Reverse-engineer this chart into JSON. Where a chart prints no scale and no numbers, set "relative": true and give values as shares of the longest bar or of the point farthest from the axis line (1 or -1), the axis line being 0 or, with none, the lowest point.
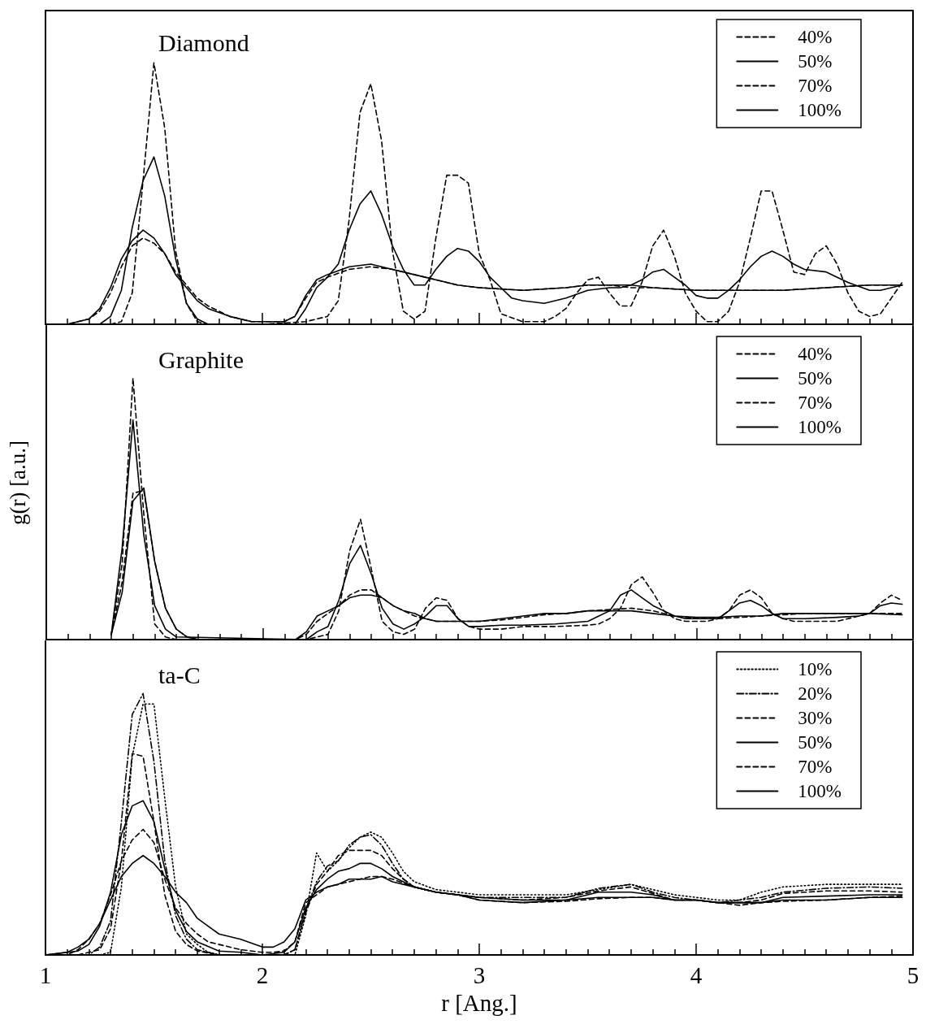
{
  "chart_data": [
    {
      "type": "line",
      "title": "Diamond",
      "relative": true,
      "xlim": [
        1,
        5
      ],
      "xticks": [
        1,
        {
          "value": 1.1,
          "label": null
        },
        {
          "value": 1.2,
          "label": null
        },
        {
          "value": 1.3,
          "label": null
        },
        {
          "value": 1.4,
          "label": null
        },
        {
          "value": 1.5,
          "label": null
        },
        {
          "value": 1.6,
          "label": null
        },
        {
          "value": 1.7,
          "label": null
        },
        {
          "value": 1.8,
          "label": null
        },
        {
          "value": 1.9,
          "label": null
        },
        2,
        {
          "value": 2.1,
          "label": null
        },
        {
          "value": 2.2,
          "label": null
        },
        {
          "value": 2.3,
          "label": null
        },
        {
          "value": 2.4,
          "label": null
        },
        {
          "value": 2.5,
          "label": null
        },
        {
          "value": 2.6,
          "label": null
        },
        {
          "value": 2.7,
          "label": null
        },
        {
          "value": 2.8,
          "label": null
        },
        {
          "value": 2.9,
          "label": null
        },
        3,
        {
          "value": 3.1,
          "label": null
        },
        {
          "value": 3.2,
          "label": null
        },
        {
          "value": 3.3,
          "label": null
        },
        {
          "value": 3.4,
          "label": null
        },
        {
          "value": 3.5,
          "label": null
        },
        {
          "value": 3.6,
          "label": null
        },
        {
          "value": 3.7,
          "label": null
        },
        {
          "value": 3.8,
          "label": null
        },
        {
          "value": 3.9,
          "label": null
        },
        4,
        {
          "value": 4.1,
          "label": null
        },
        {
          "value": 4.2,
          "label": null
        },
        {
          "value": 4.3,
          "label": null
        },
        {
          "value": 4.4,
          "label": null
        },
        {
          "value": 4.5,
          "label": null
        },
        {
          "value": 4.6,
          "label": null
        },
        {
          "value": 4.7,
          "label": null
        },
        {
          "value": 4.8,
          "label": null
        },
        {
          "value": 4.9,
          "label": null
        },
        5
      ],
      "tick_labels": false,
      "grid": false,
      "legend": "top right",
      "marker": "none",
      "series": [
        {
          "name": "40%",
          "color": "#000000",
          "line_style": "dashed",
          "x": [
            1.0,
            1.25,
            1.3,
            1.35,
            1.4,
            1.45,
            1.5,
            1.55,
            1.6,
            1.65,
            1.7,
            1.75,
            2.0,
            2.2,
            2.3,
            2.35,
            2.4,
            2.45,
            2.5,
            2.55,
            2.6,
            2.65,
            2.7,
            2.75,
            2.8,
            2.85,
            2.9,
            2.95,
            3.0,
            3.05,
            3.1,
            3.2,
            3.3,
            3.35,
            3.4,
            3.45,
            3.5,
            3.55,
            3.6,
            3.65,
            3.7,
            3.75,
            3.8,
            3.85,
            3.9,
            3.95,
            4.0,
            4.05,
            4.1,
            4.15,
            4.2,
            4.25,
            4.3,
            4.35,
            4.4,
            4.45,
            4.5,
            4.55,
            4.6,
            4.65,
            4.7,
            4.75,
            4.8,
            4.85,
            4.9,
            4.95
          ],
          "values": [
            0,
            0,
            0,
            0.01,
            0.12,
            0.55,
            1.0,
            0.75,
            0.28,
            0.08,
            0.01,
            0,
            0,
            0.01,
            0.03,
            0.09,
            0.4,
            0.81,
            0.92,
            0.7,
            0.28,
            0.05,
            0.02,
            0.05,
            0.33,
            0.57,
            0.57,
            0.54,
            0.27,
            0.17,
            0.04,
            0.01,
            0.01,
            0.03,
            0.06,
            0.12,
            0.17,
            0.18,
            0.12,
            0.07,
            0.07,
            0.16,
            0.3,
            0.36,
            0.26,
            0.12,
            0.05,
            0.01,
            0.01,
            0.05,
            0.16,
            0.33,
            0.51,
            0.51,
            0.36,
            0.2,
            0.19,
            0.27,
            0.3,
            0.23,
            0.12,
            0.05,
            0.03,
            0.04,
            0.1,
            0.16
          ]
        },
        {
          "name": "50%",
          "color": "#000000",
          "line_style": "solid",
          "x": [
            1.0,
            1.25,
            1.3,
            1.35,
            1.4,
            1.45,
            1.5,
            1.55,
            1.6,
            1.65,
            1.7,
            1.75,
            2.0,
            2.15,
            2.2,
            2.25,
            2.3,
            2.35,
            2.4,
            2.45,
            2.5,
            2.55,
            2.6,
            2.65,
            2.7,
            2.75,
            2.8,
            2.85,
            2.9,
            2.95,
            3.0,
            3.05,
            3.1,
            3.15,
            3.2,
            3.3,
            3.4,
            3.5,
            3.6,
            3.65,
            3.7,
            3.75,
            3.8,
            3.85,
            3.9,
            3.95,
            4.0,
            4.05,
            4.1,
            4.15,
            4.2,
            4.25,
            4.3,
            4.35,
            4.4,
            4.45,
            4.5,
            4.6,
            4.7,
            4.8,
            4.85,
            4.9,
            4.95
          ],
          "values": [
            0,
            0,
            0.03,
            0.13,
            0.37,
            0.55,
            0.64,
            0.49,
            0.25,
            0.08,
            0.02,
            0,
            0,
            0,
            0.06,
            0.14,
            0.18,
            0.23,
            0.36,
            0.46,
            0.51,
            0.42,
            0.3,
            0.21,
            0.15,
            0.15,
            0.21,
            0.26,
            0.29,
            0.28,
            0.24,
            0.18,
            0.14,
            0.1,
            0.09,
            0.08,
            0.1,
            0.13,
            0.14,
            0.14,
            0.15,
            0.17,
            0.2,
            0.21,
            0.18,
            0.15,
            0.11,
            0.1,
            0.1,
            0.13,
            0.17,
            0.22,
            0.26,
            0.28,
            0.26,
            0.23,
            0.21,
            0.2,
            0.16,
            0.13,
            0.13,
            0.14,
            0.15
          ]
        },
        {
          "name": "70%",
          "color": "#000000",
          "line_style": "dashed",
          "x": [
            1.0,
            1.1,
            1.15,
            1.2,
            1.25,
            1.3,
            1.35,
            1.4,
            1.45,
            1.5,
            1.55,
            1.6,
            1.65,
            1.7,
            1.75,
            1.85,
            1.95,
            2.0,
            2.1,
            2.15,
            2.2,
            2.25,
            2.3,
            2.4,
            2.5,
            2.6,
            2.7,
            2.8,
            2.9,
            3.0,
            3.2,
            3.4,
            3.5,
            3.6,
            3.7,
            3.8,
            4.0,
            4.2,
            4.4,
            4.6,
            4.8,
            4.95
          ],
          "values": [
            0,
            0,
            0.01,
            0.02,
            0.05,
            0.12,
            0.22,
            0.3,
            0.33,
            0.31,
            0.27,
            0.2,
            0.15,
            0.1,
            0.07,
            0.03,
            0.01,
            0.01,
            0.01,
            0.03,
            0.1,
            0.16,
            0.18,
            0.21,
            0.22,
            0.21,
            0.19,
            0.17,
            0.15,
            0.14,
            0.13,
            0.14,
            0.15,
            0.15,
            0.14,
            0.14,
            0.13,
            0.13,
            0.13,
            0.14,
            0.15,
            0.15
          ]
        },
        {
          "name": "100%",
          "color": "#000000",
          "line_style": "solid",
          "x": [
            1.0,
            1.1,
            1.15,
            1.2,
            1.25,
            1.3,
            1.35,
            1.4,
            1.45,
            1.5,
            1.55,
            1.6,
            1.65,
            1.7,
            1.75,
            1.85,
            1.95,
            2.0,
            2.1,
            2.15,
            2.2,
            2.25,
            2.3,
            2.4,
            2.5,
            2.6,
            2.7,
            2.8,
            2.9,
            3.0,
            3.2,
            3.4,
            3.5,
            3.6,
            3.7,
            3.8,
            4.0,
            4.2,
            4.4,
            4.6,
            4.8,
            4.95
          ],
          "values": [
            0,
            0,
            0.01,
            0.02,
            0.06,
            0.14,
            0.25,
            0.32,
            0.36,
            0.33,
            0.27,
            0.19,
            0.14,
            0.09,
            0.06,
            0.03,
            0.01,
            0.01,
            0.01,
            0.03,
            0.11,
            0.17,
            0.19,
            0.22,
            0.23,
            0.21,
            0.19,
            0.17,
            0.15,
            0.14,
            0.13,
            0.14,
            0.15,
            0.15,
            0.15,
            0.14,
            0.13,
            0.13,
            0.13,
            0.14,
            0.15,
            0.15
          ]
        }
      ]
    },
    {
      "type": "line",
      "title": "Graphite",
      "ylabel": "g(r) [a.u.]",
      "relative": true,
      "xlim": [
        1,
        5
      ],
      "xticks": [
        1,
        {
          "value": 1.1,
          "label": null
        },
        {
          "value": 1.2,
          "label": null
        },
        {
          "value": 1.3,
          "label": null
        },
        {
          "value": 1.4,
          "label": null
        },
        {
          "value": 1.5,
          "label": null
        },
        {
          "value": 1.6,
          "label": null
        },
        {
          "value": 1.7,
          "label": null
        },
        {
          "value": 1.8,
          "label": null
        },
        {
          "value": 1.9,
          "label": null
        },
        2,
        {
          "value": 2.1,
          "label": null
        },
        {
          "value": 2.2,
          "label": null
        },
        {
          "value": 2.3,
          "label": null
        },
        {
          "value": 2.4,
          "label": null
        },
        {
          "value": 2.5,
          "label": null
        },
        {
          "value": 2.6,
          "label": null
        },
        {
          "value": 2.7,
          "label": null
        },
        {
          "value": 2.8,
          "label": null
        },
        {
          "value": 2.9,
          "label": null
        },
        3,
        {
          "value": 3.1,
          "label": null
        },
        {
          "value": 3.2,
          "label": null
        },
        {
          "value": 3.3,
          "label": null
        },
        {
          "value": 3.4,
          "label": null
        },
        {
          "value": 3.5,
          "label": null
        },
        {
          "value": 3.6,
          "label": null
        },
        {
          "value": 3.7,
          "label": null
        },
        {
          "value": 3.8,
          "label": null
        },
        {
          "value": 3.9,
          "label": null
        },
        4,
        {
          "value": 4.1,
          "label": null
        },
        {
          "value": 4.2,
          "label": null
        },
        {
          "value": 4.3,
          "label": null
        },
        {
          "value": 4.4,
          "label": null
        },
        {
          "value": 4.5,
          "label": null
        },
        {
          "value": 4.6,
          "label": null
        },
        {
          "value": 4.7,
          "label": null
        },
        {
          "value": 4.8,
          "label": null
        },
        {
          "value": 4.9,
          "label": null
        },
        5
      ],
      "tick_labels": false,
      "grid": false,
      "legend": "top right",
      "marker": "none",
      "series": [
        {
          "name": "40%",
          "color": "#000000",
          "line_style": "dashed",
          "x": [
            1.3,
            1.35,
            1.4,
            1.45,
            1.5,
            1.55,
            1.6,
            2.2,
            2.25,
            2.3,
            2.35,
            2.4,
            2.45,
            2.5,
            2.55,
            2.6,
            2.65,
            2.7,
            2.75,
            2.8,
            2.85,
            2.9,
            2.95,
            3.0,
            3.1,
            3.2,
            3.35,
            3.5,
            3.55,
            3.6,
            3.65,
            3.7,
            3.75,
            3.8,
            3.85,
            3.9,
            3.95,
            4.0,
            4.05,
            4.1,
            4.15,
            4.2,
            4.25,
            4.3,
            4.35,
            4.4,
            4.45,
            4.5,
            4.65,
            4.75,
            4.8,
            4.85,
            4.9,
            4.95
          ],
          "values": [
            0.02,
            0.29,
            1.0,
            0.48,
            0.06,
            0.01,
            0,
            0,
            0.01,
            0.02,
            0.11,
            0.34,
            0.46,
            0.27,
            0.07,
            0.03,
            0.02,
            0.04,
            0.12,
            0.16,
            0.15,
            0.08,
            0.05,
            0.04,
            0.04,
            0.05,
            0.05,
            0.055,
            0.06,
            0.08,
            0.12,
            0.21,
            0.24,
            0.18,
            0.11,
            0.08,
            0.07,
            0.07,
            0.07,
            0.08,
            0.11,
            0.17,
            0.19,
            0.16,
            0.1,
            0.08,
            0.07,
            0.07,
            0.07,
            0.09,
            0.1,
            0.14,
            0.17,
            0.15
          ]
        },
        {
          "name": "50%",
          "color": "#000000",
          "line_style": "solid",
          "x": [
            1.3,
            1.35,
            1.4,
            1.45,
            1.5,
            1.55,
            1.6,
            2.2,
            2.25,
            2.3,
            2.35,
            2.4,
            2.45,
            2.5,
            2.55,
            2.6,
            2.65,
            2.7,
            2.75,
            2.8,
            2.85,
            2.9,
            2.95,
            3.0,
            3.1,
            3.2,
            3.35,
            3.5,
            3.55,
            3.6,
            3.65,
            3.7,
            3.75,
            3.8,
            3.85,
            3.9,
            3.95,
            4.0,
            4.05,
            4.1,
            4.15,
            4.2,
            4.25,
            4.3,
            4.35,
            4.4,
            4.45,
            4.5,
            4.65,
            4.75,
            4.8,
            4.85,
            4.9,
            4.95
          ],
          "values": [
            0.02,
            0.35,
            0.84,
            0.4,
            0.13,
            0.04,
            0.01,
            0,
            0.03,
            0.05,
            0.15,
            0.29,
            0.36,
            0.25,
            0.12,
            0.06,
            0.04,
            0.06,
            0.09,
            0.13,
            0.13,
            0.08,
            0.05,
            0.05,
            0.055,
            0.055,
            0.06,
            0.07,
            0.09,
            0.11,
            0.17,
            0.19,
            0.16,
            0.13,
            0.11,
            0.09,
            0.08,
            0.08,
            0.08,
            0.08,
            0.11,
            0.14,
            0.15,
            0.13,
            0.1,
            0.08,
            0.08,
            0.08,
            0.085,
            0.09,
            0.1,
            0.13,
            0.14,
            0.135
          ]
        },
        {
          "name": "70%",
          "color": "#000000",
          "line_style": "dashed",
          "x": [
            1.3,
            1.35,
            1.4,
            1.45,
            1.5,
            1.55,
            1.6,
            1.65,
            1.7,
            2.15,
            2.2,
            2.25,
            2.3,
            2.35,
            2.4,
            2.45,
            2.5,
            2.55,
            2.6,
            2.65,
            2.7,
            2.75,
            2.8,
            2.9,
            3.0,
            3.1,
            3.2,
            3.3,
            3.4,
            3.5,
            3.6,
            3.7,
            3.8,
            3.9,
            4.0,
            4.1,
            4.2,
            4.3,
            4.4,
            4.5,
            4.6,
            4.7,
            4.8,
            4.95
          ],
          "values": [
            0.02,
            0.22,
            0.56,
            0.57,
            0.3,
            0.12,
            0.04,
            0.01,
            0,
            0,
            0.02,
            0.07,
            0.1,
            0.13,
            0.17,
            0.19,
            0.19,
            0.16,
            0.13,
            0.11,
            0.09,
            0.08,
            0.07,
            0.07,
            0.07,
            0.075,
            0.085,
            0.095,
            0.1,
            0.11,
            0.115,
            0.12,
            0.11,
            0.09,
            0.08,
            0.08,
            0.085,
            0.09,
            0.095,
            0.1,
            0.1,
            0.1,
            0.1,
            0.1
          ]
        },
        {
          "name": "100%",
          "color": "#000000",
          "line_style": "solid",
          "x": [
            1.3,
            1.35,
            1.4,
            1.45,
            1.5,
            1.55,
            1.6,
            1.65,
            1.7,
            2.15,
            2.2,
            2.25,
            2.3,
            2.35,
            2.4,
            2.45,
            2.5,
            2.55,
            2.6,
            2.65,
            2.7,
            2.75,
            2.8,
            2.9,
            3.0,
            3.1,
            3.2,
            3.3,
            3.4,
            3.5,
            3.6,
            3.7,
            3.8,
            3.9,
            4.0,
            4.1,
            4.2,
            4.3,
            4.4,
            4.5,
            4.6,
            4.7,
            4.8,
            4.95
          ],
          "values": [
            0.02,
            0.18,
            0.53,
            0.58,
            0.3,
            0.12,
            0.04,
            0.01,
            0,
            0,
            0.03,
            0.09,
            0.11,
            0.13,
            0.16,
            0.17,
            0.17,
            0.16,
            0.13,
            0.11,
            0.1,
            0.08,
            0.07,
            0.07,
            0.07,
            0.08,
            0.09,
            0.1,
            0.1,
            0.11,
            0.11,
            0.11,
            0.1,
            0.09,
            0.085,
            0.085,
            0.09,
            0.09,
            0.1,
            0.1,
            0.1,
            0.1,
            0.1,
            0.095
          ]
        }
      ]
    },
    {
      "type": "line",
      "title": "ta-C",
      "xlabel": "r [Ang.]",
      "relative": true,
      "xlim": [
        1,
        5
      ],
      "xticks": [
        1,
        {
          "value": 1.1,
          "label": null
        },
        {
          "value": 1.2,
          "label": null
        },
        {
          "value": 1.3,
          "label": null
        },
        {
          "value": 1.4,
          "label": null
        },
        {
          "value": 1.5,
          "label": null
        },
        {
          "value": 1.6,
          "label": null
        },
        {
          "value": 1.7,
          "label": null
        },
        {
          "value": 1.8,
          "label": null
        },
        {
          "value": 1.9,
          "label": null
        },
        2,
        {
          "value": 2.1,
          "label": null
        },
        {
          "value": 2.2,
          "label": null
        },
        {
          "value": 2.3,
          "label": null
        },
        {
          "value": 2.4,
          "label": null
        },
        {
          "value": 2.5,
          "label": null
        },
        {
          "value": 2.6,
          "label": null
        },
        {
          "value": 2.7,
          "label": null
        },
        {
          "value": 2.8,
          "label": null
        },
        {
          "value": 2.9,
          "label": null
        },
        3,
        {
          "value": 3.1,
          "label": null
        },
        {
          "value": 3.2,
          "label": null
        },
        {
          "value": 3.3,
          "label": null
        },
        {
          "value": 3.4,
          "label": null
        },
        {
          "value": 3.5,
          "label": null
        },
        {
          "value": 3.6,
          "label": null
        },
        {
          "value": 3.7,
          "label": null
        },
        {
          "value": 3.8,
          "label": null
        },
        {
          "value": 3.9,
          "label": null
        },
        4,
        {
          "value": 4.1,
          "label": null
        },
        {
          "value": 4.2,
          "label": null
        },
        {
          "value": 4.3,
          "label": null
        },
        {
          "value": 4.4,
          "label": null
        },
        {
          "value": 4.5,
          "label": null
        },
        {
          "value": 4.6,
          "label": null
        },
        {
          "value": 4.7,
          "label": null
        },
        {
          "value": 4.8,
          "label": null
        },
        {
          "value": 4.9,
          "label": null
        },
        5
      ],
      "tick_labels": "x",
      "grid": false,
      "legend": "top right",
      "marker": "none",
      "series": [
        {
          "name": "10%",
          "color": "#000000",
          "line_style": "dotted",
          "x": [
            1.0,
            1.25,
            1.3,
            1.35,
            1.4,
            1.45,
            1.5,
            1.55,
            1.6,
            1.65,
            1.7,
            1.75,
            1.8,
            2.15,
            2.2,
            2.25,
            2.3,
            2.35,
            2.4,
            2.45,
            2.5,
            2.55,
            2.6,
            2.65,
            2.7,
            2.8,
            2.9,
            3.0,
            3.2,
            3.4,
            3.55,
            3.7,
            3.8,
            3.9,
            4.0,
            4.1,
            4.2,
            4.3,
            4.4,
            4.6,
            4.8,
            4.95
          ],
          "values": [
            0,
            0,
            0.01,
            0.26,
            0.76,
            0.96,
            0.96,
            0.6,
            0.26,
            0.08,
            0.04,
            0.01,
            0,
            0,
            0.15,
            0.39,
            0.32,
            0.36,
            0.41,
            0.45,
            0.47,
            0.45,
            0.39,
            0.32,
            0.28,
            0.25,
            0.24,
            0.23,
            0.23,
            0.23,
            0.25,
            0.27,
            0.25,
            0.23,
            0.22,
            0.21,
            0.21,
            0.24,
            0.26,
            0.27,
            0.27,
            0.27
          ]
        },
        {
          "name": "20%",
          "color": "#000000",
          "line_style": "dashdot",
          "x": [
            1.0,
            1.15,
            1.2,
            1.25,
            1.3,
            1.35,
            1.4,
            1.45,
            1.5,
            1.55,
            1.6,
            1.65,
            1.7,
            1.8,
            1.9,
            2.0,
            2.1,
            2.15,
            2.2,
            2.25,
            2.3,
            2.35,
            2.4,
            2.45,
            2.5,
            2.55,
            2.6,
            2.65,
            2.7,
            2.8,
            2.9,
            3.0,
            3.2,
            3.4,
            3.55,
            3.7,
            3.8,
            3.9,
            4.0,
            4.1,
            4.2,
            4.3,
            4.4,
            4.6,
            4.8,
            4.95
          ],
          "values": [
            0,
            0,
            0,
            0.03,
            0.13,
            0.51,
            0.92,
            1.0,
            0.74,
            0.36,
            0.15,
            0.06,
            0.02,
            0,
            0,
            0,
            0,
            0.02,
            0.17,
            0.28,
            0.34,
            0.36,
            0.42,
            0.45,
            0.46,
            0.42,
            0.35,
            0.29,
            0.26,
            0.24,
            0.23,
            0.22,
            0.22,
            0.22,
            0.255,
            0.27,
            0.24,
            0.22,
            0.21,
            0.2,
            0.21,
            0.22,
            0.24,
            0.255,
            0.26,
            0.255
          ]
        },
        {
          "name": "30%",
          "color": "#000000",
          "line_style": "dashed",
          "x": [
            1.0,
            1.15,
            1.2,
            1.25,
            1.3,
            1.35,
            1.4,
            1.45,
            1.5,
            1.55,
            1.6,
            1.65,
            1.7,
            1.8,
            1.9,
            2.0,
            2.1,
            2.15,
            2.2,
            2.25,
            2.3,
            2.35,
            2.4,
            2.45,
            2.5,
            2.55,
            2.6,
            2.65,
            2.7,
            2.8,
            2.9,
            3.0,
            3.2,
            3.4,
            3.55,
            3.7,
            3.8,
            3.9,
            4.0,
            4.1,
            4.2,
            4.3,
            4.4,
            4.6,
            4.8,
            4.95
          ],
          "values": [
            0,
            0,
            0.01,
            0.02,
            0.1,
            0.36,
            0.77,
            0.76,
            0.51,
            0.23,
            0.09,
            0.04,
            0.015,
            0,
            0,
            0,
            0,
            0.02,
            0.16,
            0.27,
            0.32,
            0.38,
            0.4,
            0.4,
            0.4,
            0.38,
            0.33,
            0.29,
            0.26,
            0.24,
            0.23,
            0.22,
            0.21,
            0.22,
            0.245,
            0.26,
            0.235,
            0.21,
            0.21,
            0.2,
            0.2,
            0.21,
            0.235,
            0.245,
            0.245,
            0.24
          ]
        },
        {
          "name": "50%",
          "color": "#000000",
          "line_style": "solid",
          "x": [
            1.0,
            1.15,
            1.2,
            1.25,
            1.3,
            1.35,
            1.4,
            1.45,
            1.5,
            1.55,
            1.6,
            1.65,
            1.7,
            1.8,
            1.9,
            2.0,
            2.1,
            2.15,
            2.2,
            2.25,
            2.3,
            2.35,
            2.4,
            2.45,
            2.5,
            2.55,
            2.6,
            2.65,
            2.7,
            2.8,
            2.9,
            3.0,
            3.2,
            3.4,
            3.55,
            3.7,
            3.8,
            3.9,
            4.0,
            4.1,
            4.2,
            4.3,
            4.4,
            4.6,
            4.8,
            4.95
          ],
          "values": [
            0,
            0.015,
            0.04,
            0.11,
            0.24,
            0.46,
            0.57,
            0.59,
            0.51,
            0.33,
            0.17,
            0.09,
            0.05,
            0.015,
            0.01,
            0,
            0.01,
            0.05,
            0.18,
            0.25,
            0.29,
            0.32,
            0.33,
            0.35,
            0.35,
            0.33,
            0.3,
            0.28,
            0.26,
            0.24,
            0.23,
            0.22,
            0.21,
            0.21,
            0.24,
            0.24,
            0.23,
            0.21,
            0.21,
            0.2,
            0.2,
            0.2,
            0.22,
            0.225,
            0.23,
            0.23
          ]
        },
        {
          "name": "70%",
          "color": "#000000",
          "line_style": "dashed",
          "x": [
            1.0,
            1.1,
            1.15,
            1.2,
            1.25,
            1.3,
            1.35,
            1.4,
            1.45,
            1.5,
            1.55,
            1.6,
            1.65,
            1.7,
            1.75,
            1.8,
            1.9,
            2.0,
            2.05,
            2.1,
            2.15,
            2.2,
            2.25,
            2.3,
            2.35,
            2.4,
            2.45,
            2.5,
            2.55,
            2.6,
            2.7,
            2.8,
            2.9,
            3.0,
            3.2,
            3.4,
            3.55,
            3.7,
            3.8,
            3.9,
            4.0,
            4.1,
            4.2,
            4.3,
            4.4,
            4.6,
            4.8,
            4.95
          ],
          "values": [
            0,
            0,
            0.02,
            0.06,
            0.12,
            0.23,
            0.36,
            0.44,
            0.48,
            0.43,
            0.29,
            0.18,
            0.12,
            0.08,
            0.05,
            0.04,
            0.02,
            0.01,
            0.01,
            0.015,
            0.05,
            0.2,
            0.23,
            0.26,
            0.27,
            0.28,
            0.29,
            0.3,
            0.3,
            0.29,
            0.26,
            0.24,
            0.23,
            0.21,
            0.2,
            0.205,
            0.215,
            0.22,
            0.22,
            0.21,
            0.21,
            0.2,
            0.19,
            0.2,
            0.205,
            0.21,
            0.22,
            0.225
          ]
        },
        {
          "name": "100%",
          "color": "#000000",
          "line_style": "solid",
          "x": [
            1.0,
            1.1,
            1.15,
            1.2,
            1.25,
            1.3,
            1.35,
            1.4,
            1.45,
            1.5,
            1.55,
            1.6,
            1.65,
            1.7,
            1.75,
            1.8,
            1.9,
            2.0,
            2.05,
            2.1,
            2.15,
            2.2,
            2.25,
            2.3,
            2.35,
            2.4,
            2.45,
            2.5,
            2.55,
            2.6,
            2.7,
            2.8,
            2.9,
            3.0,
            3.2,
            3.4,
            3.55,
            3.7,
            3.8,
            3.9,
            4.0,
            4.1,
            4.2,
            4.3,
            4.4,
            4.6,
            4.8,
            4.95
          ],
          "values": [
            0,
            0.01,
            0.03,
            0.06,
            0.12,
            0.21,
            0.3,
            0.35,
            0.38,
            0.35,
            0.3,
            0.24,
            0.2,
            0.14,
            0.11,
            0.08,
            0.06,
            0.03,
            0.03,
            0.05,
            0.1,
            0.21,
            0.24,
            0.26,
            0.27,
            0.29,
            0.29,
            0.29,
            0.3,
            0.28,
            0.26,
            0.24,
            0.23,
            0.21,
            0.2,
            0.21,
            0.22,
            0.22,
            0.22,
            0.21,
            0.21,
            0.2,
            0.2,
            0.2,
            0.21,
            0.21,
            0.22,
            0.22
          ]
        }
      ]
    }
  ]
}
